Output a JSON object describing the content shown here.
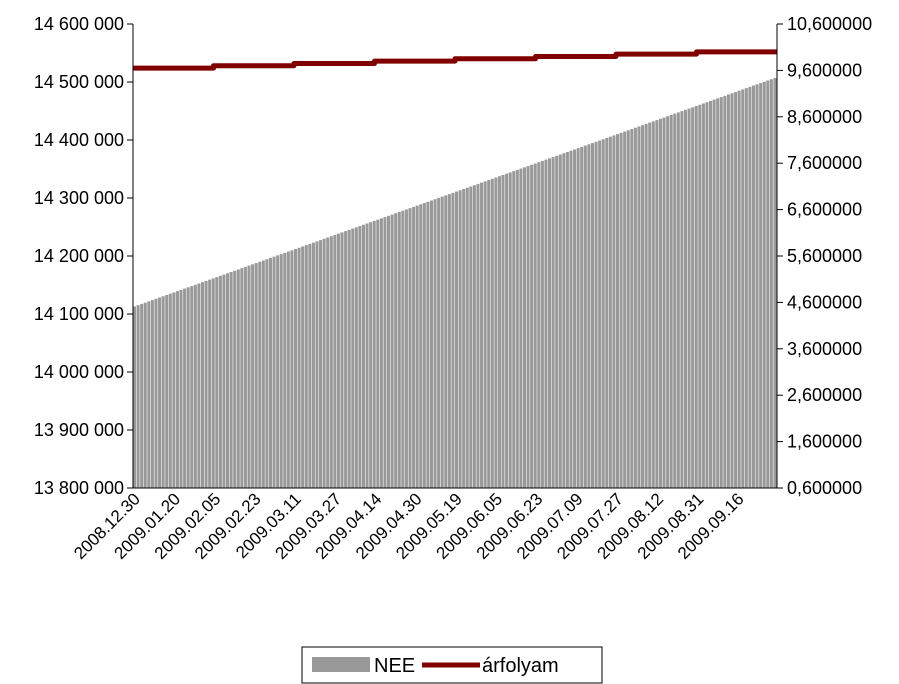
{
  "chart_data": {
    "type": "bar",
    "x_tick_labels": [
      "2008.12.30",
      "2009.01.20",
      "2009.02.05",
      "2009.02.23",
      "2009.03.11",
      "2009.03.27",
      "2009.04.14",
      "2009.04.30",
      "2009.05.19",
      "2009.06.05",
      "2009.06.23",
      "2009.07.09",
      "2009.07.27",
      "2009.08.12",
      "2009.08.31",
      "2009.09.16"
    ],
    "left_axis": {
      "ylim": [
        13800000,
        14600000
      ],
      "ticks": [
        13800000,
        13900000,
        14000000,
        14100000,
        14200000,
        14300000,
        14400000,
        14500000,
        14600000
      ],
      "tick_labels": [
        "13 800 000",
        "13 900 000",
        "14 000 000",
        "14 100 000",
        "14 200 000",
        "14 300 000",
        "14 400 000",
        "14 500 000",
        "14 600 000"
      ]
    },
    "right_axis": {
      "ylim": [
        0.6,
        10.6
      ],
      "ticks": [
        0.6,
        1.6,
        2.6,
        3.6,
        4.6,
        5.6,
        6.6,
        7.6,
        8.6,
        9.6,
        10.6
      ],
      "tick_labels": [
        "0,600000",
        "1,600000",
        "2,600000",
        "3,600000",
        "4,600000",
        "5,600000",
        "6,600000",
        "7,600000",
        "8,600000",
        "9,600000",
        "10,600000"
      ]
    },
    "series": [
      {
        "name": "NEE",
        "type": "bar",
        "axis": "left",
        "color": "#999999",
        "count": 180,
        "start_value": 14113000,
        "end_value": 14507000
      },
      {
        "name": "árfolyam",
        "type": "line",
        "axis": "right",
        "color": "#800000",
        "step_values": [
          9.65,
          9.7,
          9.75,
          9.8,
          9.85,
          9.9,
          9.95,
          10.0
        ]
      }
    ],
    "legend": {
      "position": "bottom",
      "entries": [
        "NEE",
        "árfolyam"
      ]
    },
    "grid": false
  }
}
